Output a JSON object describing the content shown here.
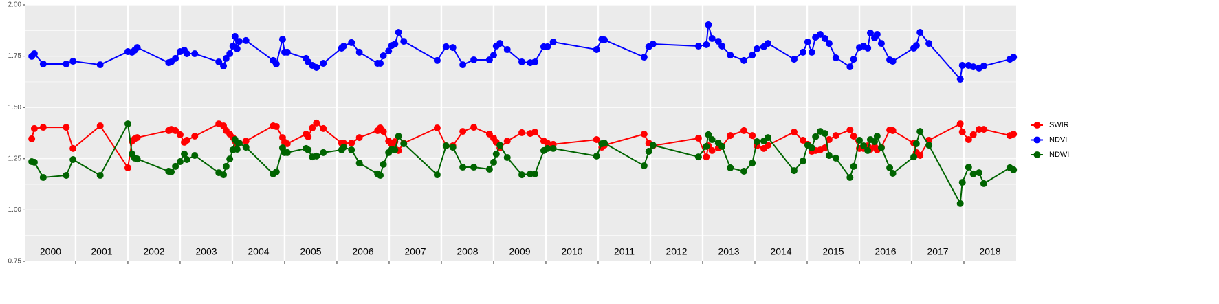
{
  "chart_data": {
    "type": "line",
    "x": [
      2000.16,
      2000.21,
      2000.38,
      2000.82,
      2000.95,
      2001.47,
      2002.0,
      2002.08,
      2002.13,
      2002.18,
      2002.78,
      2002.83,
      2002.91,
      2003.0,
      2003.08,
      2003.13,
      2003.28,
      2003.74,
      2003.83,
      2003.88,
      2003.95,
      2004.01,
      2004.05,
      2004.09,
      2004.13,
      2004.26,
      2004.78,
      2004.84,
      2004.96,
      2005.0,
      2005.05,
      2005.41,
      2005.45,
      2005.53,
      2005.61,
      2005.74,
      2006.09,
      2006.13,
      2006.28,
      2006.43,
      2006.78,
      2006.83,
      2006.89,
      2006.99,
      2007.05,
      2007.11,
      2007.18,
      2007.28,
      2007.92,
      2008.09,
      2008.22,
      2008.41,
      2008.62,
      2008.92,
      2009.0,
      2009.05,
      2009.12,
      2009.26,
      2009.54,
      2009.7,
      2009.79,
      2009.96,
      2010.03,
      2010.14,
      2010.97,
      2011.07,
      2011.12,
      2011.88,
      2011.97,
      2012.05,
      2012.92,
      2013.07,
      2013.11,
      2013.18,
      2013.3,
      2013.37,
      2013.53,
      2013.79,
      2013.95,
      2014.04,
      2014.17,
      2014.25,
      2014.75,
      2014.92,
      2015.01,
      2015.09,
      2015.16,
      2015.25,
      2015.34,
      2015.42,
      2015.55,
      2015.82,
      2015.89,
      2016.0,
      2016.08,
      2016.16,
      2016.21,
      2016.29,
      2016.34,
      2016.42,
      2016.58,
      2016.64,
      2017.04,
      2017.09,
      2017.16,
      2017.33,
      2017.93,
      2017.97,
      2018.09,
      2018.18,
      2018.29,
      2018.38,
      2018.88,
      2018.95
    ],
    "series": [
      {
        "name": "SWIR",
        "color": "#ff0000",
        "values": [
          1.347,
          1.397,
          1.403,
          1.403,
          1.3,
          1.41,
          1.206,
          1.336,
          1.347,
          1.353,
          1.387,
          1.393,
          1.387,
          1.367,
          1.33,
          1.34,
          1.36,
          1.42,
          1.41,
          1.387,
          1.37,
          1.353,
          1.336,
          1.32,
          1.326,
          1.336,
          1.41,
          1.407,
          1.353,
          1.33,
          1.323,
          1.37,
          1.357,
          1.4,
          1.424,
          1.397,
          1.326,
          1.326,
          1.326,
          1.353,
          1.387,
          1.4,
          1.383,
          1.336,
          1.32,
          1.333,
          1.29,
          1.326,
          1.4,
          1.313,
          1.313,
          1.383,
          1.403,
          1.37,
          1.35,
          1.33,
          1.303,
          1.336,
          1.377,
          1.373,
          1.38,
          1.336,
          1.326,
          1.32,
          1.343,
          1.306,
          1.316,
          1.37,
          1.326,
          1.313,
          1.35,
          1.259,
          1.313,
          1.29,
          1.303,
          1.31,
          1.363,
          1.387,
          1.363,
          1.313,
          1.3,
          1.316,
          1.38,
          1.34,
          1.32,
          1.286,
          1.29,
          1.293,
          1.303,
          1.343,
          1.363,
          1.39,
          1.36,
          1.3,
          1.3,
          1.313,
          1.296,
          1.31,
          1.293,
          1.306,
          1.39,
          1.387,
          1.326,
          1.28,
          1.266,
          1.34,
          1.42,
          1.38,
          1.343,
          1.367,
          1.393,
          1.393,
          1.363,
          1.37
        ]
      },
      {
        "name": "NDVI",
        "color": "#0000ff",
        "values": [
          1.749,
          1.762,
          1.712,
          1.712,
          1.725,
          1.708,
          1.772,
          1.769,
          1.779,
          1.792,
          1.718,
          1.722,
          1.739,
          1.772,
          1.779,
          1.762,
          1.762,
          1.722,
          1.702,
          1.739,
          1.762,
          1.799,
          1.846,
          1.786,
          1.822,
          1.826,
          1.729,
          1.712,
          1.832,
          1.769,
          1.769,
          1.739,
          1.722,
          1.705,
          1.695,
          1.715,
          1.789,
          1.799,
          1.816,
          1.769,
          1.715,
          1.715,
          1.752,
          1.775,
          1.802,
          1.809,
          1.866,
          1.822,
          1.729,
          1.796,
          1.792,
          1.708,
          1.732,
          1.732,
          1.755,
          1.799,
          1.812,
          1.782,
          1.722,
          1.718,
          1.722,
          1.796,
          1.796,
          1.819,
          1.782,
          1.832,
          1.829,
          1.745,
          1.796,
          1.809,
          1.799,
          1.806,
          1.903,
          1.836,
          1.822,
          1.799,
          1.755,
          1.729,
          1.755,
          1.786,
          1.796,
          1.812,
          1.735,
          1.769,
          1.819,
          1.769,
          1.842,
          1.856,
          1.836,
          1.812,
          1.742,
          1.698,
          1.735,
          1.792,
          1.799,
          1.789,
          1.863,
          1.839,
          1.856,
          1.812,
          1.732,
          1.725,
          1.789,
          1.802,
          1.866,
          1.812,
          1.638,
          1.705,
          1.705,
          1.698,
          1.692,
          1.702,
          1.735,
          1.745
        ]
      },
      {
        "name": "NDWI",
        "color": "#006400",
        "values": [
          1.236,
          1.233,
          1.159,
          1.169,
          1.246,
          1.169,
          1.42,
          1.273,
          1.253,
          1.249,
          1.189,
          1.186,
          1.213,
          1.236,
          1.273,
          1.246,
          1.266,
          1.182,
          1.172,
          1.213,
          1.249,
          1.293,
          1.343,
          1.296,
          1.326,
          1.306,
          1.176,
          1.186,
          1.303,
          1.28,
          1.28,
          1.3,
          1.293,
          1.259,
          1.263,
          1.28,
          1.293,
          1.306,
          1.293,
          1.229,
          1.176,
          1.169,
          1.223,
          1.28,
          1.296,
          1.293,
          1.36,
          1.323,
          1.172,
          1.313,
          1.306,
          1.209,
          1.209,
          1.199,
          1.233,
          1.273,
          1.316,
          1.256,
          1.172,
          1.176,
          1.176,
          1.29,
          1.3,
          1.3,
          1.263,
          1.323,
          1.326,
          1.216,
          1.286,
          1.316,
          1.259,
          1.31,
          1.367,
          1.343,
          1.326,
          1.31,
          1.206,
          1.189,
          1.229,
          1.333,
          1.336,
          1.353,
          1.192,
          1.239,
          1.316,
          1.303,
          1.357,
          1.383,
          1.373,
          1.266,
          1.253,
          1.159,
          1.213,
          1.34,
          1.313,
          1.29,
          1.343,
          1.333,
          1.36,
          1.303,
          1.206,
          1.179,
          1.259,
          1.323,
          1.383,
          1.316,
          1.032,
          1.135,
          1.209,
          1.176,
          1.182,
          1.129,
          1.206,
          1.196
        ]
      }
    ],
    "xlim": [
      2000.04,
      2019.0
    ],
    "xticks": [
      2001,
      2002,
      2003,
      2004,
      2005,
      2006,
      2007,
      2008,
      2009,
      2010,
      2011,
      2012,
      2013,
      2014,
      2015,
      2016,
      2017,
      2018
    ],
    "year_labels": [
      "2000",
      "2001",
      "2002",
      "2003",
      "2004",
      "2005",
      "2006",
      "2007",
      "2008",
      "2009",
      "2010",
      "2011",
      "2012",
      "2013",
      "2014",
      "2015",
      "2016",
      "2017",
      "2018"
    ],
    "ylim": [
      0.75,
      2.0
    ],
    "yticks": [
      0.75,
      {
        "value": 1,
        "label": "1.00"
      },
      1.25,
      {
        "value": 1.5,
        "label": "1.50"
      },
      1.75,
      {
        "value": 2,
        "label": "2.00"
      }
    ],
    "grid": true,
    "legend": "right"
  }
}
